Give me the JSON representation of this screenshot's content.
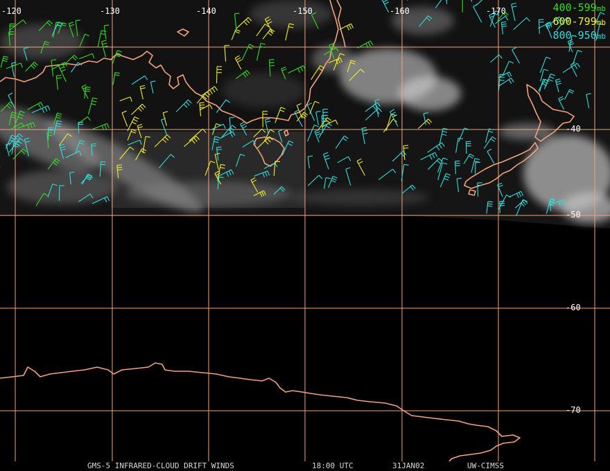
{
  "colors": {
    "grid": "#f4a37c",
    "coast": "#f4a37c",
    "level_400_599": "#33dd22",
    "level_600_799": "#f2ee2a",
    "level_800_950": "#33dddd",
    "label": "#ffffff"
  },
  "longitude_labels": [
    "-120",
    "-130",
    "-140",
    "-150",
    "-160",
    "-170"
  ],
  "latitude_labels": [
    "-40",
    "-50",
    "-60",
    "-70"
  ],
  "legend": {
    "items": [
      {
        "range": "400-599",
        "unit": "mb",
        "color": "#33dd22"
      },
      {
        "range": "600-799",
        "unit": "mb",
        "color": "#f2ee2a"
      },
      {
        "range": "800-950",
        "unit": "mb",
        "color": "#33dddd"
      }
    ]
  },
  "footer": {
    "product": "GMS-5 INFRARED-CLOUD DRIFT WINDS",
    "time": "18:00 UTC",
    "date": "31JAN02",
    "source": "UW-CIMSS"
  }
}
